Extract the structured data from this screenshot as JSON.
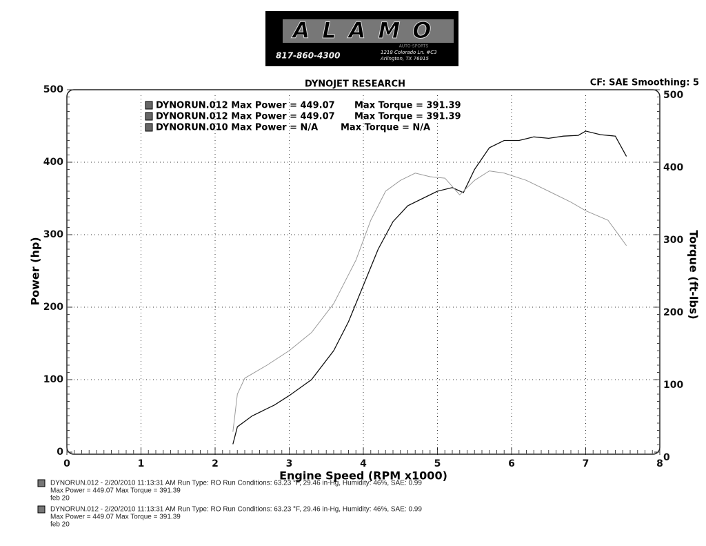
{
  "header": {
    "logo": "ALAMO",
    "logo_sub": "AUTO-SPORTS",
    "phone": "817-860-4300",
    "address": [
      "1218 Colorado Ln. #C3",
      "Arlington, TX 76015"
    ]
  },
  "chart_data": {
    "type": "line",
    "title": "DYNOJET RESEARCH",
    "subtitle": "CF: SAE  Smoothing: 5",
    "x_label": "Engine Speed (RPM x1000)",
    "y_label": "Power (hp)",
    "y2_label": "Torque (ft-lbs)",
    "xlim": [
      0,
      8
    ],
    "xticks": [
      0,
      1,
      2,
      3,
      4,
      5,
      6,
      7,
      8
    ],
    "ylim": [
      0,
      500
    ],
    "yticks": [
      0,
      100,
      200,
      300,
      400,
      500
    ],
    "y2lim": [
      0,
      500
    ],
    "y2ticks": [
      0,
      100,
      200,
      300,
      400,
      500
    ],
    "grid": true,
    "legend": [
      {
        "label": "DYNORUN.012 Max Power = 449.07",
        "torque": "Max Torque = 391.39"
      },
      {
        "label": "DYNORUN.012 Max Power = 449.07",
        "torque": "Max Torque = 391.39"
      },
      {
        "label": "DYNORUN.010 Max Power = N/A",
        "torque": "Max Torque = N/A"
      }
    ],
    "series": [
      {
        "color": "#111111",
        "axis": "y",
        "x": [
          2.24,
          2.3,
          2.5,
          2.8,
          3.0,
          3.3,
          3.6,
          3.8,
          4.0,
          4.2,
          4.4,
          4.6,
          4.8,
          5.0,
          5.2,
          5.35,
          5.5,
          5.7,
          5.9,
          6.1,
          6.3,
          6.5,
          6.7,
          6.9,
          7.0,
          7.2,
          7.4,
          7.55
        ],
        "values": [
          11,
          35,
          50,
          65,
          78,
          100,
          140,
          180,
          230,
          280,
          318,
          340,
          350,
          360,
          365,
          358,
          390,
          420,
          430,
          430,
          435,
          433,
          436,
          437,
          443,
          438,
          436,
          408
        ]
      },
      {
        "color": "#9a9a9a",
        "axis": "y2",
        "x": [
          2.24,
          2.3,
          2.4,
          2.7,
          3.0,
          3.3,
          3.6,
          3.9,
          4.1,
          4.3,
          4.5,
          4.7,
          4.9,
          5.1,
          5.3,
          5.5,
          5.7,
          5.9,
          6.2,
          6.5,
          6.8,
          7.0,
          7.3,
          7.55
        ],
        "values": [
          28,
          80,
          102,
          120,
          140,
          165,
          205,
          265,
          320,
          360,
          375,
          385,
          380,
          378,
          355,
          375,
          388,
          385,
          375,
          360,
          345,
          333,
          320,
          285
        ]
      }
    ]
  },
  "footer": [
    [
      "DYNORUN.012 - 2/20/2010 11:13:31 AM  Run Type: RO  Run Conditions: 63.23 °F, 29.46 in-Hg,  Humidity:  46%, SAE: 0.99",
      "Max Power = 449.07  Max Torque = 391.39",
      "feb 20"
    ],
    [
      "DYNORUN.012 - 2/20/2010 11:13:31 AM  Run Type: RO  Run Conditions: 63.23 °F, 29.46 in-Hg,  Humidity:  46%, SAE: 0.99",
      "Max Power = 449.07  Max Torque = 391.39",
      "feb 20"
    ]
  ]
}
